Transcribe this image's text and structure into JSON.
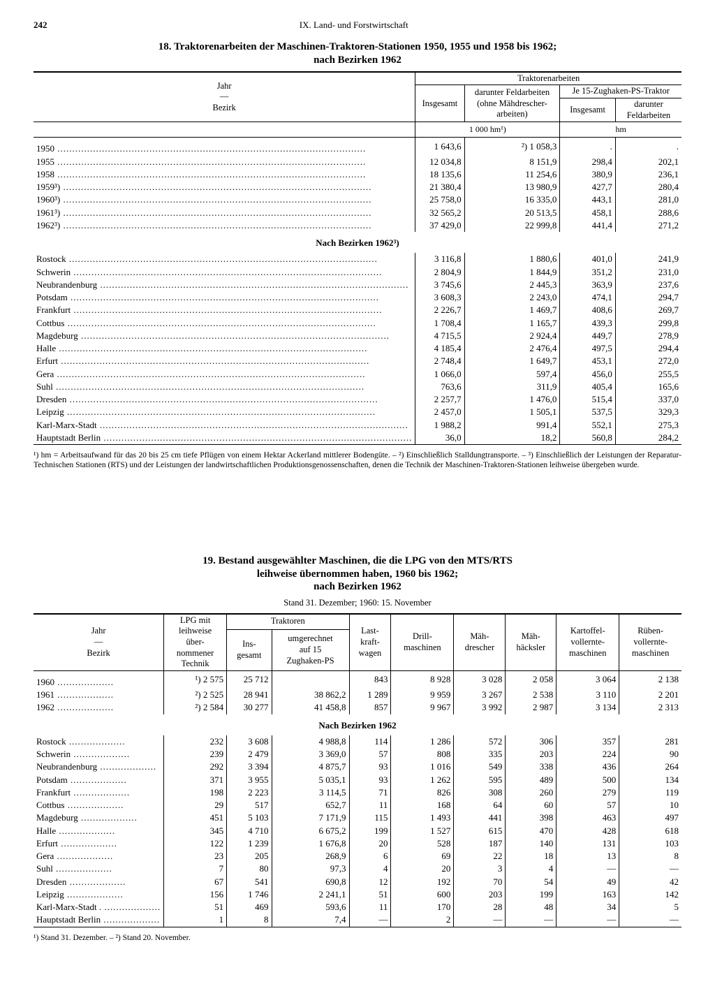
{
  "page": {
    "number": "242",
    "section": "IX. Land- und Forstwirtschaft"
  },
  "table18": {
    "title_line1": "18. Traktorenarbeiten der Maschinen-Traktoren-Stationen 1950, 1955 und 1958 bis 1962;",
    "title_line2": "nach Bezirken 1962",
    "col_year": "Jahr",
    "col_sep": "—",
    "col_bezirk": "Bezirk",
    "col_tr": "Traktorenarbeiten",
    "col_insg": "Insgesamt",
    "col_feld": "darunter Feldarbeiten\n(ohne Mähdrescher-\narbeiten)",
    "col_je15": "Je 15-Zughaken-PS-Traktor",
    "col_je15_insg": "Insgesamt",
    "col_je15_feld": "darunter\nFeldarbeiten",
    "unit_left": "1 000 hm¹)",
    "unit_right": "hm",
    "years": [
      {
        "label": "1950",
        "c1": "1 643,6",
        "c2": "²) 1 058,3",
        "c3": ".",
        "c4": "."
      },
      {
        "label": "1955",
        "c1": "12 034,8",
        "c2": "8 151,9",
        "c3": "298,4",
        "c4": "202,1"
      },
      {
        "label": "1958",
        "c1": "18 135,6",
        "c2": "11 254,6",
        "c3": "380,9",
        "c4": "236,1"
      },
      {
        "label": "1959³)",
        "c1": "21 380,4",
        "c2": "13 980,9",
        "c3": "427,7",
        "c4": "280,4"
      },
      {
        "label": "1960³)",
        "c1": "25 758,0",
        "c2": "16 335,0",
        "c3": "443,1",
        "c4": "281,0"
      },
      {
        "label": "1961³)",
        "c1": "32 565,2",
        "c2": "20 513,5",
        "c3": "458,1",
        "c4": "288,6"
      },
      {
        "label": "1962³)",
        "c1": "37 429,0",
        "c2": "22 999,8",
        "c3": "441,4",
        "c4": "271,2"
      }
    ],
    "subhead": "Nach Bezirken 1962³)",
    "bezirke": [
      {
        "label": "Rostock",
        "c1": "3 116,8",
        "c2": "1 880,6",
        "c3": "401,0",
        "c4": "241,9"
      },
      {
        "label": "Schwerin",
        "c1": "2 804,9",
        "c2": "1 844,9",
        "c3": "351,2",
        "c4": "231,0"
      },
      {
        "label": "Neubrandenburg",
        "c1": "3 745,6",
        "c2": "2 445,3",
        "c3": "363,9",
        "c4": "237,6"
      },
      {
        "label": "Potsdam",
        "c1": "3 608,3",
        "c2": "2 243,0",
        "c3": "474,1",
        "c4": "294,7"
      },
      {
        "label": "Frankfurt",
        "c1": "2 226,7",
        "c2": "1 469,7",
        "c3": "408,6",
        "c4": "269,7"
      },
      {
        "label": "Cottbus",
        "c1": "1 708,4",
        "c2": "1 165,7",
        "c3": "439,3",
        "c4": "299,8"
      },
      {
        "label": "Magdeburg",
        "c1": "4 715,5",
        "c2": "2 924,4",
        "c3": "449,7",
        "c4": "278,9"
      },
      {
        "label": "Halle",
        "c1": "4 185,4",
        "c2": "2 476,4",
        "c3": "497,5",
        "c4": "294,4"
      },
      {
        "label": "Erfurt",
        "c1": "2 748,4",
        "c2": "1 649,7",
        "c3": "453,1",
        "c4": "272,0"
      },
      {
        "label": "Gera",
        "c1": "1 066,0",
        "c2": "597,4",
        "c3": "456,0",
        "c4": "255,5"
      },
      {
        "label": "Suhl",
        "c1": "763,6",
        "c2": "311,9",
        "c3": "405,4",
        "c4": "165,6"
      },
      {
        "label": "Dresden",
        "c1": "2 257,7",
        "c2": "1 476,0",
        "c3": "515,4",
        "c4": "337,0"
      },
      {
        "label": "Leipzig",
        "c1": "2 457,0",
        "c2": "1 505,1",
        "c3": "537,5",
        "c4": "329,3"
      },
      {
        "label": "Karl-Marx-Stadt",
        "c1": "1 988,2",
        "c2": "991,4",
        "c3": "552,1",
        "c4": "275,3"
      },
      {
        "label": "Hauptstadt Berlin",
        "c1": "36,0",
        "c2": "18,2",
        "c3": "560,8",
        "c4": "284,2"
      }
    ],
    "footnote": "¹) hm = Arbeitsaufwand für das 20 bis 25 cm tiefe Pflügen von einem Hektar Ackerland mittlerer Bodengüte. – ²) Einschließlich Stalldungtransporte. – ³) Einschließlich der Leistungen der Reparatur-Technischen Stationen (RTS) und der Leistungen der landwirtschaftlichen Produktionsgenossenschaften, denen die Technik der Maschinen-Traktoren-Stationen leihweise übergeben wurde."
  },
  "table19": {
    "title_line1": "19. Bestand ausgewählter Maschinen, die die LPG von den MTS/RTS",
    "title_line2": "leihweise übernommen haben, 1960 bis 1962;",
    "title_line3": "nach Bezirken 1962",
    "caption": "Stand 31. Dezember; 1960: 15. November",
    "col_year": "Jahr",
    "col_sep": "—",
    "col_bezirk": "Bezirk",
    "col_lpg": "LPG mit\nleihweise\nüber-\nnommener\nTechnik",
    "col_trak": "Traktoren",
    "col_trak_insg": "Ins-\ngesamt",
    "col_trak_umg": "umgerechnet\nauf 15\nZughaken-PS",
    "col_lkw": "Last-\nkraft-\nwagen",
    "col_drill": "Drill-\nmaschinen",
    "col_maeh": "Mäh-\ndrescher",
    "col_haeck": "Mäh-\nhäcksler",
    "col_kart": "Kartoffel-\nvollernte-\nmaschinen",
    "col_rueb": "Rüben-\nvollernte-\nmaschinen",
    "years": [
      {
        "label": "1960",
        "lpg": "¹) 2 575",
        "c1": "25 712",
        "c2": "",
        "c3": "843",
        "c4": "8 928",
        "c5": "3 028",
        "c6": "2 058",
        "c7": "3 064",
        "c8": "2 138"
      },
      {
        "label": "1961",
        "lpg": "²) 2 525",
        "c1": "28 941",
        "c2": "38 862,2",
        "c3": "1 289",
        "c4": "9 959",
        "c5": "3 267",
        "c6": "2 538",
        "c7": "3 110",
        "c8": "2 201"
      },
      {
        "label": "1962",
        "lpg": "²) 2 584",
        "c1": "30 277",
        "c2": "41 458,8",
        "c3": "857",
        "c4": "9 967",
        "c5": "3 992",
        "c6": "2 987",
        "c7": "3 134",
        "c8": "2 313"
      }
    ],
    "subhead": "Nach Bezirken 1962",
    "bezirke": [
      {
        "label": "Rostock",
        "lpg": "232",
        "c1": "3 608",
        "c2": "4 988,8",
        "c3": "114",
        "c4": "1 286",
        "c5": "572",
        "c6": "306",
        "c7": "357",
        "c8": "281"
      },
      {
        "label": "Schwerin",
        "lpg": "239",
        "c1": "2 479",
        "c2": "3 369,0",
        "c3": "57",
        "c4": "808",
        "c5": "335",
        "c6": "203",
        "c7": "224",
        "c8": "90"
      },
      {
        "label": "Neubrandenburg",
        "lpg": "292",
        "c1": "3 394",
        "c2": "4 875,7",
        "c3": "93",
        "c4": "1 016",
        "c5": "549",
        "c6": "338",
        "c7": "436",
        "c8": "264"
      },
      {
        "label": "Potsdam",
        "lpg": "371",
        "c1": "3 955",
        "c2": "5 035,1",
        "c3": "93",
        "c4": "1 262",
        "c5": "595",
        "c6": "489",
        "c7": "500",
        "c8": "134"
      },
      {
        "label": "Frankfurt",
        "lpg": "198",
        "c1": "2 223",
        "c2": "3 114,5",
        "c3": "71",
        "c4": "826",
        "c5": "308",
        "c6": "260",
        "c7": "279",
        "c8": "119"
      },
      {
        "label": "Cottbus",
        "lpg": "29",
        "c1": "517",
        "c2": "652,7",
        "c3": "11",
        "c4": "168",
        "c5": "64",
        "c6": "60",
        "c7": "57",
        "c8": "10"
      },
      {
        "label": "Magdeburg",
        "lpg": "451",
        "c1": "5 103",
        "c2": "7 171,9",
        "c3": "115",
        "c4": "1 493",
        "c5": "441",
        "c6": "398",
        "c7": "463",
        "c8": "497"
      },
      {
        "label": "Halle",
        "lpg": "345",
        "c1": "4 710",
        "c2": "6 675,2",
        "c3": "199",
        "c4": "1 527",
        "c5": "615",
        "c6": "470",
        "c7": "428",
        "c8": "618"
      },
      {
        "label": "Erfurt",
        "lpg": "122",
        "c1": "1 239",
        "c2": "1 676,8",
        "c3": "20",
        "c4": "528",
        "c5": "187",
        "c6": "140",
        "c7": "131",
        "c8": "103"
      },
      {
        "label": "Gera",
        "lpg": "23",
        "c1": "205",
        "c2": "268,9",
        "c3": "6",
        "c4": "69",
        "c5": "22",
        "c6": "18",
        "c7": "13",
        "c8": "8"
      },
      {
        "label": "Suhl",
        "lpg": "7",
        "c1": "80",
        "c2": "97,3",
        "c3": "4",
        "c4": "20",
        "c5": "3",
        "c6": "4",
        "c7": "—",
        "c8": "—"
      },
      {
        "label": "Dresden",
        "lpg": "67",
        "c1": "541",
        "c2": "690,8",
        "c3": "12",
        "c4": "192",
        "c5": "70",
        "c6": "54",
        "c7": "49",
        "c8": "42"
      },
      {
        "label": "Leipzig",
        "lpg": "156",
        "c1": "1 746",
        "c2": "2 241,1",
        "c3": "51",
        "c4": "600",
        "c5": "203",
        "c6": "199",
        "c7": "163",
        "c8": "142"
      },
      {
        "label": "Karl-Marx-Stadt .",
        "lpg": "51",
        "c1": "469",
        "c2": "593,6",
        "c3": "11",
        "c4": "170",
        "c5": "28",
        "c6": "48",
        "c7": "34",
        "c8": "5"
      },
      {
        "label": "Hauptstadt Berlin",
        "lpg": "1",
        "c1": "8",
        "c2": "7,4",
        "c3": "—",
        "c4": "2",
        "c5": "—",
        "c6": "—",
        "c7": "—",
        "c8": "—"
      }
    ],
    "footnote": "¹) Stand 31. Dezember. – ²) Stand 20. November."
  }
}
